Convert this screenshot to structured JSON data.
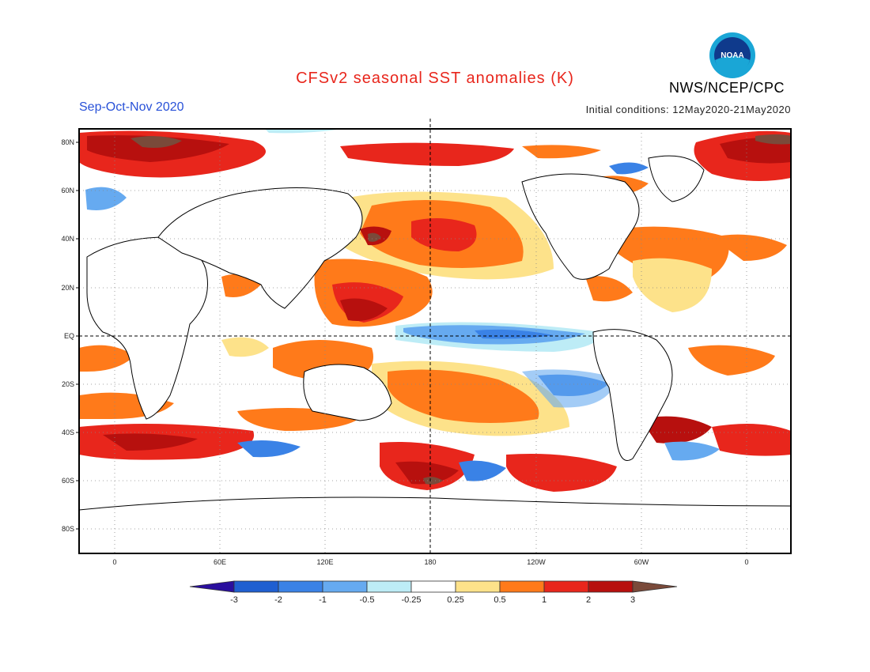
{
  "header": {
    "title": "CFSv2 seasonal SST anomalies (K)",
    "period": "Sep-Oct-Nov 2020",
    "initial_conditions": "Initial conditions: 12May2020-21May2020",
    "agency": "NWS/NCEP/CPC",
    "logo_text": "NOAA"
  },
  "map": {
    "lat_labels": [
      "80N",
      "60N",
      "40N",
      "20N",
      "EQ",
      "20S",
      "40S",
      "60S",
      "80S"
    ],
    "lon_labels": [
      "0",
      "60E",
      "120E",
      "180",
      "120W",
      "60W",
      "0"
    ]
  },
  "colorbar": {
    "labels": [
      "-3",
      "-2",
      "-1",
      "-0.5",
      "-0.25",
      "0.25",
      "0.5",
      "1",
      "2",
      "3"
    ],
    "colors": [
      "#2a0f9e",
      "#1f5fd1",
      "#3a82e6",
      "#66aaf0",
      "#bdecf6",
      "#ffffff",
      "#fde28a",
      "#ff7a1a",
      "#e8261c",
      "#b7100e",
      "#7a4a3a"
    ]
  }
}
